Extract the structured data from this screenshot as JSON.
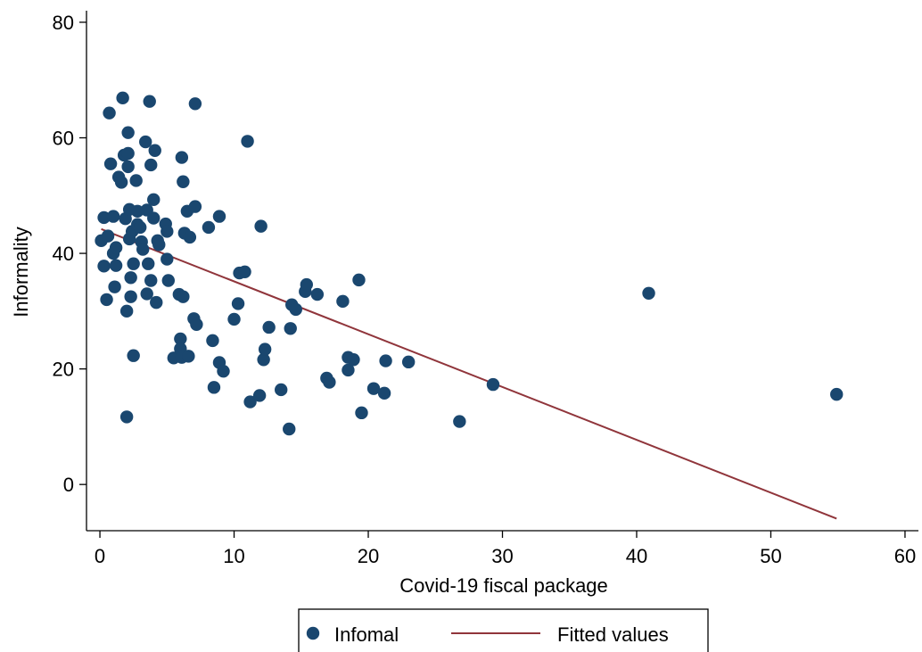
{
  "chart_data": {
    "type": "scatter",
    "xlabel": "Covid-19 fiscal package",
    "ylabel": "Informality",
    "xlim": [
      -1,
      61
    ],
    "ylim": [
      -8,
      82
    ],
    "xticks": [
      "0",
      "10",
      "20",
      "30",
      "40",
      "50",
      "60"
    ],
    "yticks": [
      "0",
      "20",
      "40",
      "60",
      "80"
    ],
    "grid": false,
    "legend_position": "bottom",
    "series": [
      {
        "name": "Infomal",
        "kind": "scatter",
        "color": "#1a476f",
        "points": [
          [
            0.1,
            42.2
          ],
          [
            0.3,
            46.2
          ],
          [
            0.3,
            37.8
          ],
          [
            0.5,
            32.0
          ],
          [
            0.6,
            43.0
          ],
          [
            0.7,
            64.3
          ],
          [
            0.8,
            55.5
          ],
          [
            1.0,
            40.0
          ],
          [
            1.0,
            46.4
          ],
          [
            1.1,
            34.2
          ],
          [
            1.2,
            37.9
          ],
          [
            1.2,
            41.0
          ],
          [
            1.4,
            53.2
          ],
          [
            1.6,
            52.3
          ],
          [
            1.7,
            66.9
          ],
          [
            1.8,
            57.0
          ],
          [
            1.9,
            46.0
          ],
          [
            2.0,
            30.0
          ],
          [
            2.0,
            11.7
          ],
          [
            2.1,
            55.0
          ],
          [
            2.1,
            57.3
          ],
          [
            2.1,
            60.9
          ],
          [
            2.2,
            47.6
          ],
          [
            2.2,
            42.5
          ],
          [
            2.3,
            35.8
          ],
          [
            2.3,
            32.5
          ],
          [
            2.4,
            43.8
          ],
          [
            2.5,
            22.3
          ],
          [
            2.5,
            38.2
          ],
          [
            2.7,
            52.6
          ],
          [
            2.8,
            47.3
          ],
          [
            2.8,
            45.0
          ],
          [
            3.0,
            44.5
          ],
          [
            3.1,
            42.0
          ],
          [
            3.2,
            40.7
          ],
          [
            3.4,
            59.3
          ],
          [
            3.5,
            47.5
          ],
          [
            3.5,
            33.0
          ],
          [
            3.6,
            38.2
          ],
          [
            3.7,
            66.3
          ],
          [
            3.8,
            55.3
          ],
          [
            3.8,
            35.3
          ],
          [
            4.0,
            49.3
          ],
          [
            4.0,
            46.1
          ],
          [
            4.1,
            57.8
          ],
          [
            4.2,
            31.5
          ],
          [
            4.3,
            42.2
          ],
          [
            4.4,
            41.5
          ],
          [
            4.9,
            45.1
          ],
          [
            5.0,
            43.8
          ],
          [
            5.0,
            39.0
          ],
          [
            5.1,
            35.3
          ],
          [
            5.5,
            21.9
          ],
          [
            5.9,
            32.9
          ],
          [
            6.0,
            25.2
          ],
          [
            6.0,
            23.5
          ],
          [
            6.1,
            22.0
          ],
          [
            6.1,
            56.6
          ],
          [
            6.2,
            32.5
          ],
          [
            6.2,
            52.4
          ],
          [
            6.3,
            43.5
          ],
          [
            6.5,
            47.3
          ],
          [
            6.6,
            22.2
          ],
          [
            6.7,
            42.8
          ],
          [
            7.0,
            28.7
          ],
          [
            7.1,
            48.1
          ],
          [
            7.1,
            65.9
          ],
          [
            7.2,
            27.7
          ],
          [
            8.1,
            44.5
          ],
          [
            8.4,
            24.9
          ],
          [
            8.5,
            16.8
          ],
          [
            8.9,
            46.4
          ],
          [
            8.9,
            21.1
          ],
          [
            9.2,
            19.6
          ],
          [
            10.0,
            28.6
          ],
          [
            10.3,
            31.3
          ],
          [
            10.4,
            36.6
          ],
          [
            10.8,
            36.8
          ],
          [
            11.0,
            59.4
          ],
          [
            11.2,
            14.3
          ],
          [
            11.9,
            15.4
          ],
          [
            12.0,
            44.7
          ],
          [
            12.2,
            21.6
          ],
          [
            12.3,
            23.4
          ],
          [
            12.6,
            27.2
          ],
          [
            13.5,
            16.4
          ],
          [
            14.1,
            9.6
          ],
          [
            14.2,
            27.0
          ],
          [
            14.3,
            31.1
          ],
          [
            14.6,
            30.3
          ],
          [
            15.3,
            33.4
          ],
          [
            15.4,
            34.6
          ],
          [
            16.2,
            32.9
          ],
          [
            16.9,
            18.4
          ],
          [
            17.1,
            17.7
          ],
          [
            18.1,
            31.7
          ],
          [
            18.5,
            22.0
          ],
          [
            18.5,
            19.8
          ],
          [
            18.9,
            21.6
          ],
          [
            19.3,
            35.4
          ],
          [
            19.5,
            12.4
          ],
          [
            20.4,
            16.6
          ],
          [
            21.2,
            15.8
          ],
          [
            21.3,
            21.4
          ],
          [
            23.0,
            21.2
          ],
          [
            26.8,
            10.9
          ],
          [
            29.3,
            17.3
          ],
          [
            40.9,
            33.1
          ],
          [
            54.9,
            15.6
          ]
        ]
      },
      {
        "name": "Fitted values",
        "kind": "line",
        "color": "#90353b",
        "points": [
          [
            0.1,
            44.2
          ],
          [
            54.9,
            -5.9
          ]
        ]
      }
    ]
  }
}
